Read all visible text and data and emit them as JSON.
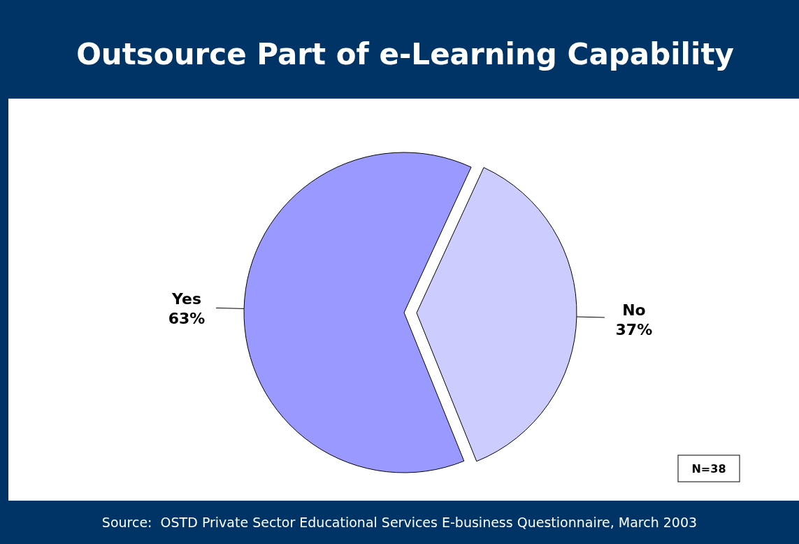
{
  "chart_data": {
    "type": "pie",
    "title": "Outsource Part of e-Learning Capability",
    "categories": [
      "Yes",
      "No"
    ],
    "values": [
      63,
      37
    ],
    "value_labels": [
      "63%",
      "37%"
    ],
    "colors": [
      "#9999ff",
      "#ccccff"
    ],
    "annotations": [
      "N=38",
      "Source:  OSTD Private Sector Educational Services E-business Questionnaire, March 2003"
    ]
  }
}
